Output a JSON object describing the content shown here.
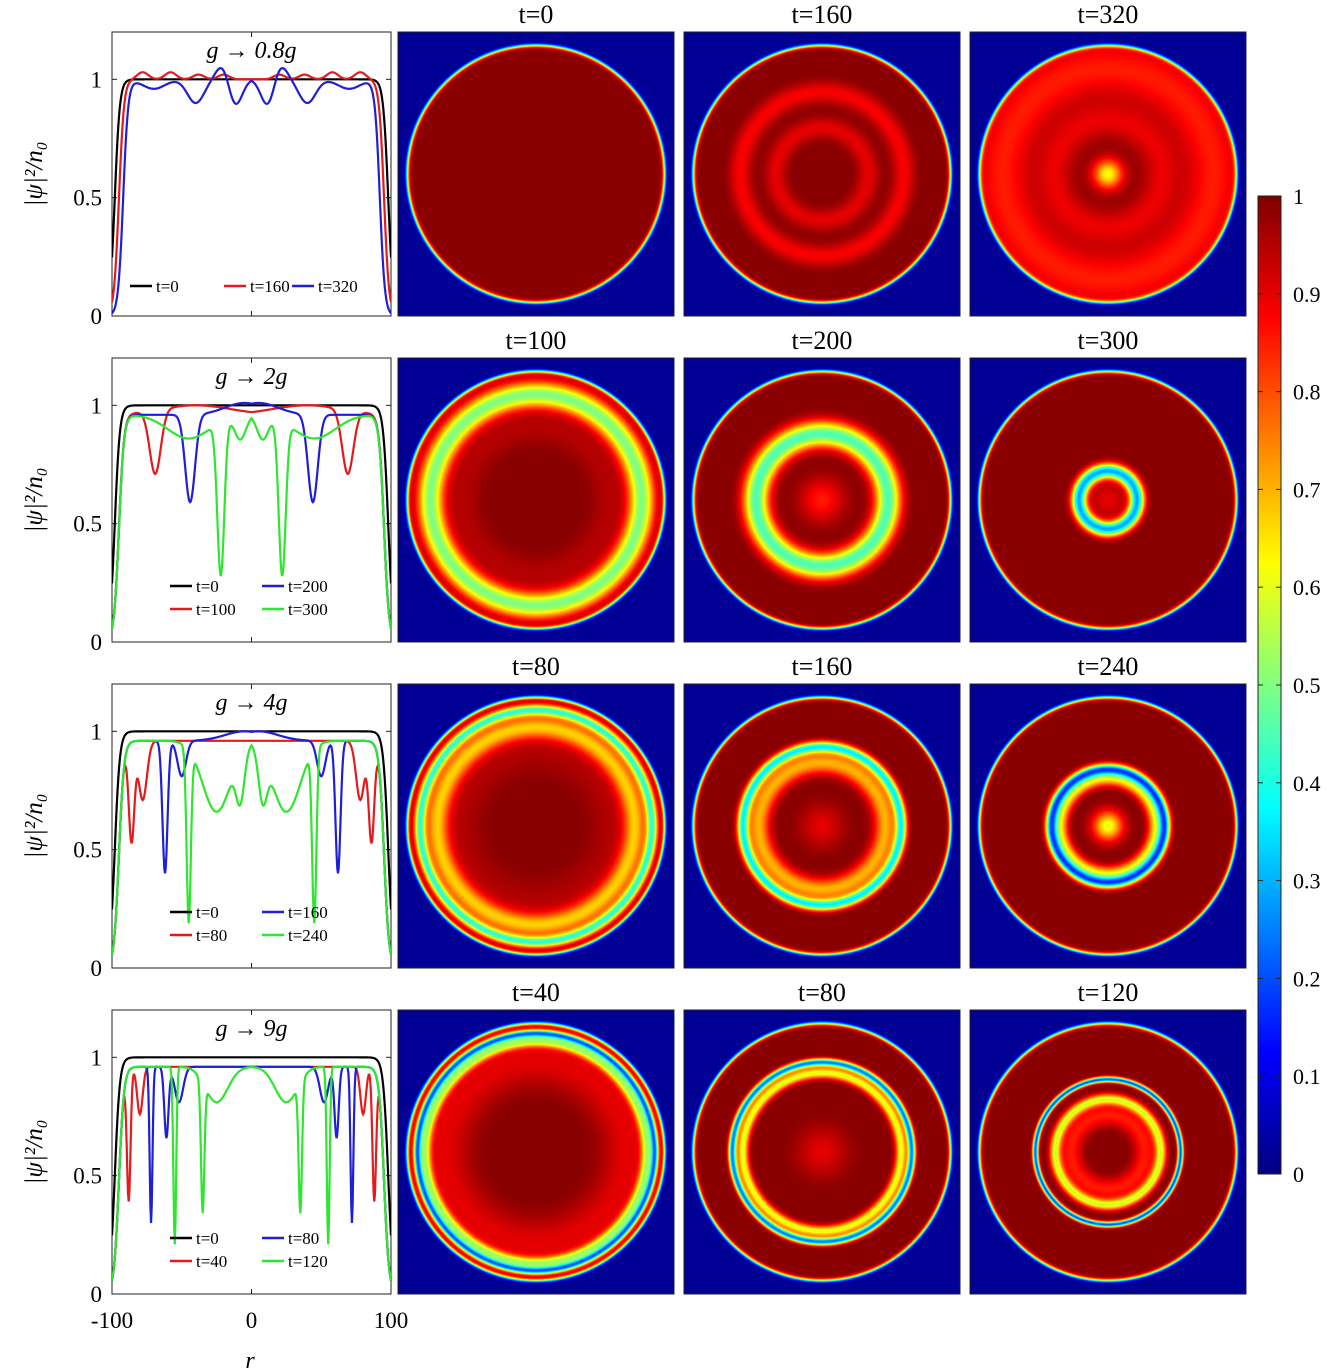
{
  "figure": {
    "ylabel": "|ψ|²/n₀",
    "xlabel": "r",
    "colorbar": {
      "min": 0,
      "max": 1,
      "ticks": [
        "0",
        "0.1",
        "0.2",
        "0.3",
        "0.4",
        "0.5",
        "0.6",
        "0.7",
        "0.8",
        "0.9",
        "1"
      ],
      "colormap": "jet"
    }
  },
  "chart_data": [
    {
      "type": "line",
      "title": "g → 0.8g",
      "xlabel": "r",
      "ylabel": "|ψ|²/n₀",
      "xlim": [
        -100,
        100
      ],
      "ylim": [
        0,
        1.2
      ],
      "xticks": [
        "-100",
        "0",
        "100"
      ],
      "yticks": [
        "0",
        "0.5",
        "1"
      ],
      "series": [
        {
          "name": "t=0",
          "color": "#000000",
          "wall": 98,
          "waves": []
        },
        {
          "name": "t=160",
          "color": "#e41a1c",
          "wall": 95,
          "waves": [
            [
              0.03,
              78,
              4
            ],
            [
              0.03,
              58,
              4
            ],
            [
              0.02,
              38,
              4
            ],
            [
              0.02,
              20,
              4
            ]
          ]
        },
        {
          "name": "t=320",
          "color": "#1f1fd6",
          "wall": 92,
          "waves": [
            [
              0.07,
              20,
              5
            ],
            [
              -0.12,
              12,
              5
            ],
            [
              -0.1,
              40,
              6
            ],
            [
              -0.04,
              70,
              8
            ]
          ]
        }
      ],
      "panels": [
        {
          "label": "t=0",
          "rings": []
        },
        {
          "label": "t=160",
          "rings": [
            [
              62,
              6,
              -0.12
            ],
            [
              35,
              6,
              -0.1
            ]
          ]
        },
        {
          "label": "t=320",
          "rings": [
            [
              80,
              16,
              -0.15
            ],
            [
              40,
              10,
              -0.1
            ],
            [
              0,
              8,
              -0.38
            ]
          ]
        }
      ]
    },
    {
      "type": "line",
      "title": "g → 2g",
      "xlabel": "r",
      "ylabel": "|ψ|²/n₀",
      "xlim": [
        -100,
        100
      ],
      "ylim": [
        0,
        1.2
      ],
      "xticks": [
        "-100",
        "0",
        "100"
      ],
      "yticks": [
        "0",
        "0.5",
        "1"
      ],
      "series": [
        {
          "name": "t=0",
          "color": "#000000",
          "wall": 98,
          "waves": []
        },
        {
          "name": "t=100",
          "color": "#e41a1c",
          "wall": 95,
          "base": 0.96,
          "waves": [
            [
              -0.27,
              69,
              4
            ],
            [
              0.04,
              40,
              25
            ]
          ]
        },
        {
          "name": "t=200",
          "color": "#1f1fd6",
          "wall": 95,
          "base": 0.96,
          "waves": [
            [
              -0.37,
              44,
              3.5
            ],
            [
              0.05,
              5,
              14
            ]
          ]
        },
        {
          "name": "t=300",
          "color": "#2ee62e",
          "wall": 95,
          "base": 0.96,
          "waves": [
            [
              -0.65,
              22,
              2.5
            ],
            [
              -0.1,
              8,
              4
            ],
            [
              -0.1,
              45,
              15
            ]
          ]
        }
      ],
      "panels": [
        {
          "label": "t=100",
          "rings": [
            [
              80,
              7,
              -0.5
            ],
            [
              55,
              10,
              -0.05
            ]
          ]
        },
        {
          "label": "t=200",
          "rings": [
            [
              50,
              7,
              -0.55
            ],
            [
              0,
              12,
              -0.15
            ]
          ]
        },
        {
          "label": "t=300",
          "rings": [
            [
              22,
              4,
              -0.7
            ],
            [
              0,
              10,
              -0.1
            ]
          ]
        }
      ]
    },
    {
      "type": "line",
      "title": "g → 4g",
      "xlabel": "r",
      "ylabel": "|ψ|²/n₀",
      "xlim": [
        -100,
        100
      ],
      "ylim": [
        0,
        1.2
      ],
      "xticks": [
        "-100",
        "0",
        "100"
      ],
      "yticks": [
        "0",
        "0.5",
        "1"
      ],
      "series": [
        {
          "name": "t=0",
          "color": "#000000",
          "wall": 98,
          "waves": []
        },
        {
          "name": "t=80",
          "color": "#e41a1c",
          "wall": 95,
          "base": 0.96,
          "waves": [
            [
              -0.42,
              86,
              2
            ],
            [
              -0.25,
              78,
              3
            ]
          ]
        },
        {
          "name": "t=160",
          "color": "#1f1fd6",
          "wall": 95,
          "base": 0.96,
          "waves": [
            [
              -0.56,
              62,
              1.8
            ],
            [
              -0.15,
              50,
              3
            ],
            [
              0.04,
              5,
              14
            ]
          ]
        },
        {
          "name": "t=240",
          "color": "#2ee62e",
          "wall": 95,
          "base": 0.96,
          "waves": [
            [
              -0.73,
              45,
              1.5
            ],
            [
              -0.3,
              25,
              10
            ],
            [
              -0.2,
              8,
              3
            ]
          ]
        }
      ],
      "panels": [
        {
          "label": "t=80",
          "rings": [
            [
              88,
              3,
              -0.55
            ],
            [
              75,
              6,
              -0.3
            ],
            [
              60,
              15,
              -0.05
            ]
          ]
        },
        {
          "label": "t=160",
          "rings": [
            [
              60,
              3,
              -0.6
            ],
            [
              48,
              6,
              -0.3
            ],
            [
              0,
              12,
              -0.1
            ]
          ]
        },
        {
          "label": "t=240",
          "rings": [
            [
              43,
              3,
              -0.75
            ],
            [
              36,
              4,
              -0.35
            ],
            [
              0,
              8,
              -0.4
            ]
          ]
        }
      ]
    },
    {
      "type": "line",
      "title": "g → 9g",
      "xlabel": "r",
      "ylabel": "|ψ|²/n₀",
      "xlim": [
        -100,
        100
      ],
      "ylim": [
        0,
        1.2
      ],
      "xticks": [
        "-100",
        "0",
        "100"
      ],
      "yticks": [
        "0",
        "0.5",
        "1"
      ],
      "series": [
        {
          "name": "t=0",
          "color": "#000000",
          "wall": 98,
          "waves": []
        },
        {
          "name": "t=40",
          "color": "#e41a1c",
          "wall": 95,
          "base": 0.96,
          "waves": [
            [
              -0.55,
              88,
              1.3
            ],
            [
              -0.2,
              80,
              2
            ]
          ]
        },
        {
          "name": "t=80",
          "color": "#1f1fd6",
          "wall": 95,
          "base": 0.96,
          "waves": [
            [
              -0.66,
              72,
              1
            ],
            [
              -0.3,
              61,
              1.5
            ],
            [
              -0.15,
              52,
              3
            ]
          ]
        },
        {
          "name": "t=120",
          "color": "#2ee62e",
          "wall": 95,
          "base": 0.96,
          "waves": [
            [
              -0.75,
              55,
              1
            ],
            [
              -0.55,
              35,
              1.2
            ],
            [
              -0.15,
              25,
              8
            ]
          ]
        }
      ],
      "panels": [
        {
          "label": "t=40",
          "rings": [
            [
              90,
              2,
              -0.7
            ],
            [
              84,
              3,
              -0.4
            ],
            [
              70,
              15,
              -0.1
            ]
          ]
        },
        {
          "label": "t=80",
          "rings": [
            [
              68,
              2,
              -0.75
            ],
            [
              60,
              3,
              -0.4
            ],
            [
              0,
              14,
              -0.1
            ]
          ]
        },
        {
          "label": "t=120",
          "rings": [
            [
              55,
              1.5,
              -0.8
            ],
            [
              40,
              3,
              -0.4
            ],
            [
              28,
              6,
              -0.15
            ]
          ]
        }
      ]
    }
  ]
}
